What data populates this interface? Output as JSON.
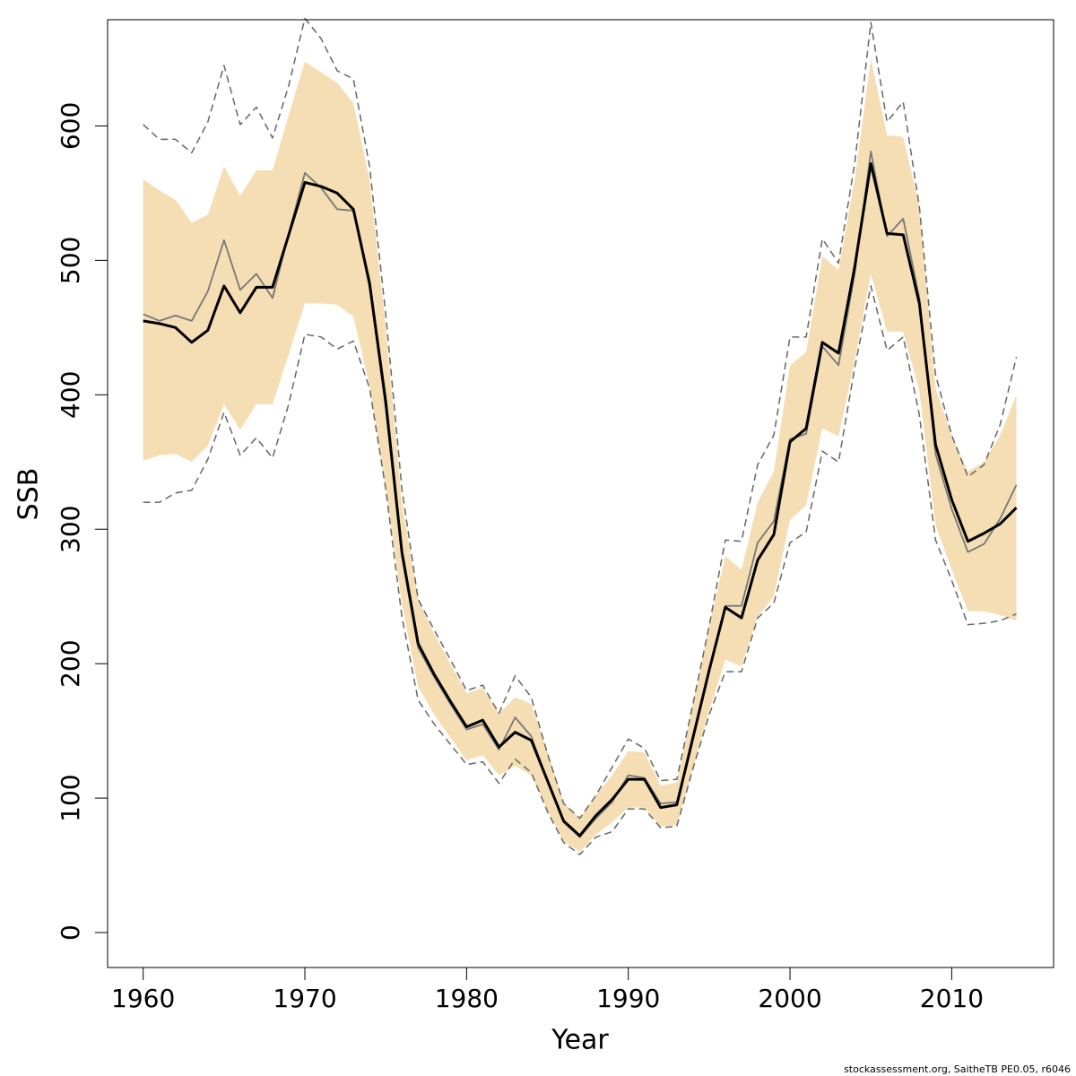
{
  "chart_data": {
    "type": "line",
    "xlabel": "Year",
    "ylabel": "SSB",
    "footnote": "stockassessment.org, SaitheTB  PE0.05, r6046",
    "x": [
      1960,
      1961,
      1962,
      1963,
      1964,
      1965,
      1966,
      1967,
      1968,
      1969,
      1970,
      1971,
      1972,
      1973,
      1974,
      1975,
      1976,
      1977,
      1978,
      1979,
      1980,
      1981,
      1982,
      1983,
      1984,
      1985,
      1986,
      1987,
      1988,
      1989,
      1990,
      1991,
      1992,
      1993,
      1994,
      1995,
      1996,
      1997,
      1998,
      1999,
      2000,
      2001,
      2002,
      2003,
      2004,
      2005,
      2006,
      2007,
      2008,
      2009,
      2010,
      2011,
      2012,
      2013,
      2014
    ],
    "band": {
      "color": "#f5deb3",
      "upper": [
        560,
        552,
        545,
        528,
        534,
        570,
        548,
        567,
        567,
        608,
        648,
        640,
        632,
        617,
        560,
        450,
        320,
        248,
        222,
        200,
        178,
        182,
        163,
        175,
        170,
        135,
        97,
        85,
        102,
        117,
        135,
        134,
        109,
        112,
        170,
        228,
        280,
        270,
        320,
        343,
        422,
        432,
        503,
        493,
        560,
        650,
        593,
        592,
        540,
        405,
        370,
        343,
        350,
        370,
        400
      ],
      "lower": [
        351,
        355,
        356,
        350,
        362,
        393,
        374,
        393,
        393,
        430,
        468,
        468,
        467,
        458,
        407,
        330,
        245,
        183,
        162,
        145,
        128,
        132,
        117,
        124,
        117,
        91,
        68,
        60,
        73,
        82,
        93,
        93,
        79,
        80,
        122,
        165,
        203,
        198,
        235,
        250,
        307,
        318,
        375,
        369,
        425,
        490,
        447,
        447,
        403,
        303,
        270,
        239,
        239,
        236,
        232
      ]
    },
    "series": [
      {
        "color": "#666666",
        "dash": true,
        "width": 1.5,
        "values": [
          601,
          590,
          590,
          580,
          603,
          645,
          601,
          614,
          591,
          630,
          680,
          665,
          641,
          635,
          570,
          460,
          330,
          248,
          225,
          203,
          180,
          184,
          163,
          191,
          175,
          133,
          96,
          85,
          102,
          123,
          144,
          137,
          113,
          114,
          170,
          228,
          292,
          291,
          348,
          370,
          443,
          443,
          516,
          498,
          572,
          677,
          603,
          618,
          540,
          415,
          370,
          339,
          348,
          378,
          428
        ]
      },
      {
        "color": "#666666",
        "dash": true,
        "width": 1.5,
        "values": [
          320,
          320,
          327,
          329,
          352,
          387,
          355,
          368,
          353,
          393,
          445,
          443,
          434,
          440,
          405,
          330,
          235,
          173,
          155,
          140,
          125,
          127,
          111,
          129,
          119,
          90,
          67,
          58,
          71,
          75,
          92,
          92,
          78,
          79,
          122,
          162,
          194,
          194,
          234,
          245,
          290,
          298,
          358,
          350,
          420,
          481,
          433,
          443,
          385,
          292,
          262,
          229,
          230,
          232,
          237
        ]
      },
      {
        "color": "#777777",
        "dash": false,
        "width": 1.8,
        "values": [
          460,
          455,
          459,
          455,
          477,
          515,
          478,
          490,
          472,
          520,
          565,
          554,
          538,
          537,
          480,
          390,
          280,
          212,
          190,
          170,
          151,
          155,
          136,
          160,
          146,
          113,
          82,
          71,
          85,
          97,
          117,
          115,
          96,
          97,
          145,
          195,
          243,
          243,
          290,
          306,
          367,
          371,
          436,
          422,
          490,
          581,
          518,
          531,
          472,
          356,
          315,
          283,
          289,
          308,
          333
        ]
      },
      {
        "color": "#000000",
        "dash": false,
        "width": 3,
        "values": [
          455,
          453,
          450,
          439,
          448,
          481,
          461,
          480,
          480,
          519,
          558,
          555,
          550,
          538,
          483,
          395,
          283,
          215,
          192,
          172,
          153,
          158,
          138,
          149,
          143,
          113,
          83,
          72,
          87,
          99,
          114,
          114,
          93,
          95,
          145,
          195,
          242,
          234,
          277,
          296,
          365,
          375,
          439,
          431,
          495,
          572,
          520,
          519,
          468,
          363,
          322,
          291,
          297,
          304,
          316
        ]
      }
    ],
    "xlim": [
      1957.8,
      2016.3
    ],
    "ylim": [
      -26,
      679
    ],
    "xticks": [
      1960,
      1970,
      1980,
      1990,
      2000,
      2010
    ],
    "yticks": [
      0,
      100,
      200,
      300,
      400,
      500,
      600
    ]
  }
}
